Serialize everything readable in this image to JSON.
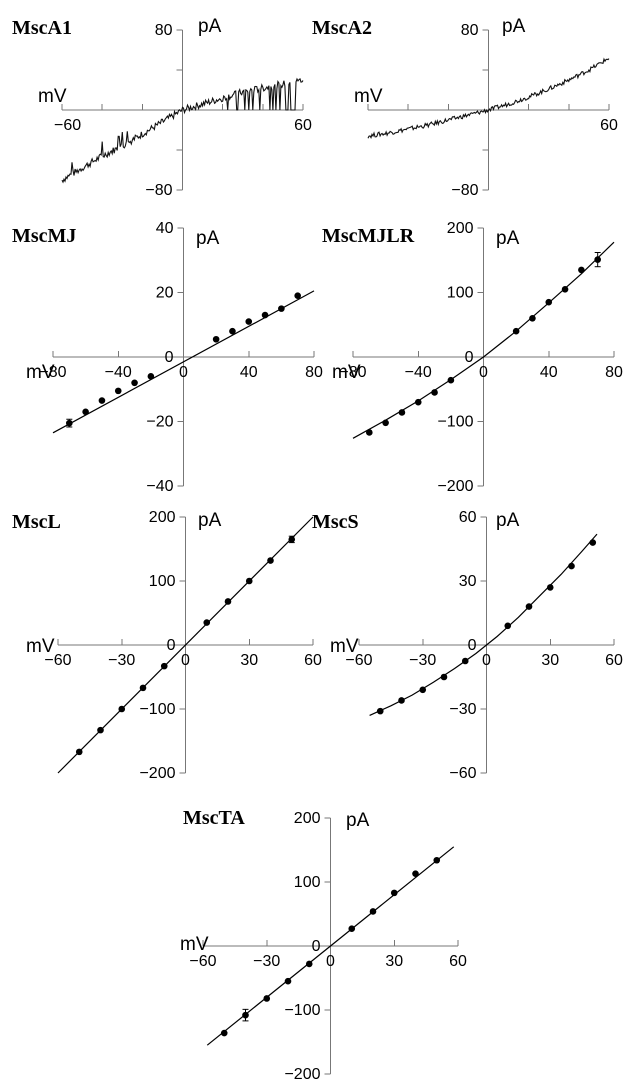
{
  "chart_data": [
    {
      "type": "line",
      "title": "MscA1",
      "xlabel": "mV",
      "ylabel": "pA",
      "xlim": [
        -60,
        60
      ],
      "ylim": [
        -80,
        80
      ],
      "x_ticks": [
        -60,
        -40,
        -20,
        0,
        20,
        40,
        60
      ],
      "y_ticks": [
        -80,
        -40,
        0,
        40,
        80
      ],
      "x_tick_labels": [
        "-60",
        "60"
      ],
      "y_tick_labels": [
        "80",
        "-80"
      ],
      "series": [
        {
          "x": [
            -60,
            -50,
            -40,
            -30,
            -20,
            -10,
            0,
            10,
            20,
            30,
            40,
            50,
            60
          ],
          "y": [
            -70,
            -58,
            -46,
            -36,
            -24,
            -12,
            0,
            6,
            12,
            18,
            22,
            26,
            30
          ]
        }
      ]
    },
    {
      "type": "line",
      "title": "MscA2",
      "xlabel": "mV",
      "ylabel": "pA",
      "xlim": [
        -60,
        60
      ],
      "ylim": [
        -80,
        80
      ],
      "x_ticks": [
        -60,
        -40,
        -20,
        0,
        20,
        40,
        60
      ],
      "y_ticks": [
        -80,
        -40,
        0,
        40,
        80
      ],
      "x_tick_labels": [
        "60"
      ],
      "y_tick_labels": [
        "80",
        "-80"
      ],
      "series": [
        {
          "x": [
            -60,
            -50,
            -40,
            -30,
            -20,
            -10,
            0,
            10,
            20,
            30,
            40,
            50,
            60
          ],
          "y": [
            -26,
            -23,
            -19,
            -15,
            -10,
            -5,
            0,
            6,
            13,
            21,
            30,
            40,
            52
          ]
        }
      ]
    },
    {
      "type": "scatter",
      "title": "MscMJ",
      "xlabel": "mV",
      "ylabel": "pA",
      "xlim": [
        -80,
        80
      ],
      "ylim": [
        -40,
        40
      ],
      "x_ticks": [
        -80,
        -40,
        0,
        40,
        80
      ],
      "y_ticks": [
        -40,
        -20,
        0,
        20,
        40
      ],
      "x_tick_labels": [
        "-80",
        "-40",
        "0",
        "40",
        "80"
      ],
      "y_tick_labels": [
        "40",
        "20",
        "0",
        "-20",
        "-40"
      ],
      "fit": {
        "x1": -80,
        "y1": -23.5,
        "x2": 80,
        "y2": 20.5
      },
      "series": [
        {
          "x": [
            -70,
            -60,
            -50,
            -40,
            -30,
            -20,
            20,
            30,
            40,
            50,
            60,
            70
          ],
          "y": [
            -20.5,
            -17,
            -13.5,
            -10.5,
            -8,
            -6,
            5.5,
            8,
            11,
            13,
            15,
            19
          ],
          "err": [
            1.2,
            0,
            0,
            0,
            0,
            0,
            0,
            0,
            0,
            0,
            0,
            0
          ]
        }
      ]
    },
    {
      "type": "scatter",
      "title": "MscMJLR",
      "xlabel": "mV",
      "ylabel": "pA",
      "xlim": [
        -80,
        80
      ],
      "ylim": [
        -200,
        200
      ],
      "x_ticks": [
        -80,
        -40,
        0,
        40,
        80
      ],
      "y_ticks": [
        -200,
        -100,
        0,
        100,
        200
      ],
      "x_tick_labels": [
        "-80",
        "-40",
        "0",
        "40",
        "80"
      ],
      "y_tick_labels": [
        "200",
        "100",
        "0",
        "-100",
        "-200"
      ],
      "fit_curve_x": [
        -80,
        -60,
        -40,
        -20,
        0,
        20,
        40,
        60,
        80
      ],
      "fit_curve_y": [
        -126,
        -98,
        -68,
        -35,
        0,
        40,
        84,
        129,
        178
      ],
      "series": [
        {
          "x": [
            -70,
            -60,
            -50,
            -40,
            -30,
            -20,
            20,
            30,
            40,
            50,
            60,
            70
          ],
          "y": [
            -117,
            -102,
            -86,
            -70,
            -55,
            -36,
            40,
            60,
            85,
            105,
            135,
            151
          ],
          "err": [
            0,
            0,
            0,
            0,
            0,
            0,
            0,
            0,
            0,
            0,
            0,
            11
          ]
        }
      ]
    },
    {
      "type": "scatter",
      "title": "MscL",
      "xlabel": "mV",
      "ylabel": "pA",
      "xlim": [
        -60,
        60
      ],
      "ylim": [
        -200,
        200
      ],
      "x_ticks": [
        -60,
        -30,
        0,
        30,
        60
      ],
      "y_ticks": [
        -200,
        -100,
        0,
        100,
        200
      ],
      "x_tick_labels": [
        "-60",
        "-30",
        "0",
        "30",
        "60"
      ],
      "y_tick_labels": [
        "200",
        "100",
        "0",
        "-100",
        "-200"
      ],
      "fit": {
        "x1": -60,
        "y1": -200,
        "x2": 60,
        "y2": 200
      },
      "series": [
        {
          "x": [
            -50,
            -40,
            -30,
            -20,
            -10,
            10,
            20,
            30,
            40,
            50
          ],
          "y": [
            -167,
            -133,
            -100,
            -67,
            -33,
            35,
            68,
            100,
            132,
            165
          ],
          "err": [
            0,
            0,
            0,
            0,
            0,
            0,
            0,
            0,
            0,
            5
          ]
        }
      ]
    },
    {
      "type": "scatter",
      "title": "MscS",
      "xlabel": "mV",
      "ylabel": "pA",
      "xlim": [
        -60,
        60
      ],
      "ylim": [
        -60,
        60
      ],
      "x_ticks": [
        -60,
        -30,
        0,
        30,
        60
      ],
      "y_ticks": [
        -60,
        -30,
        0,
        30,
        60
      ],
      "x_tick_labels": [
        "-60",
        "-30",
        "0",
        "30",
        "60"
      ],
      "y_tick_labels": [
        "60",
        "30",
        "0",
        "-30",
        "-60"
      ],
      "fit_curve_x": [
        -55,
        -45,
        -35,
        -25,
        -15,
        -5,
        0,
        5,
        15,
        25,
        35,
        45,
        52
      ],
      "fit_curve_y": [
        -33,
        -28.5,
        -23.5,
        -17.5,
        -11,
        -4,
        0,
        4,
        13,
        23,
        33,
        44,
        52
      ],
      "series": [
        {
          "x": [
            -50,
            -40,
            -30,
            -20,
            -10,
            10,
            20,
            30,
            40,
            50
          ],
          "y": [
            -31,
            -26,
            -21,
            -15,
            -7.5,
            9,
            18,
            27,
            37,
            48
          ],
          "err": [
            0,
            0,
            0,
            0,
            0,
            0,
            0,
            0,
            0,
            0
          ]
        }
      ]
    },
    {
      "type": "scatter",
      "title": "MscTA",
      "xlabel": "mV",
      "ylabel": "pA",
      "xlim": [
        -60,
        60
      ],
      "ylim": [
        -200,
        200
      ],
      "x_ticks": [
        -60,
        -30,
        0,
        30,
        60
      ],
      "y_ticks": [
        -200,
        -100,
        0,
        100,
        200
      ],
      "x_tick_labels": [
        "-60",
        "-30",
        "0",
        "30",
        "60"
      ],
      "y_tick_labels": [
        "200",
        "100",
        "0",
        "-100",
        "-200"
      ],
      "fit": {
        "x1": -58,
        "y1": -155,
        "x2": 58,
        "y2": 155
      },
      "series": [
        {
          "x": [
            -50,
            -40,
            -30,
            -20,
            -10,
            10,
            20,
            30,
            40,
            50
          ],
          "y": [
            -136,
            -108,
            -82,
            -55,
            -28,
            27,
            54,
            83,
            113,
            134
          ],
          "err": [
            0,
            9,
            0,
            0,
            0,
            0,
            0,
            0,
            0,
            0
          ]
        }
      ]
    }
  ]
}
